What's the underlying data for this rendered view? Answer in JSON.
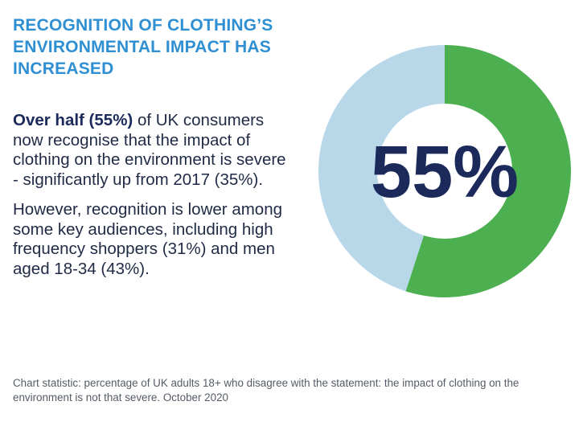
{
  "title_lines": [
    "RECOGNITION OF CLOTHING’S",
    "ENVIRONMENTAL IMPACT HAS",
    "INCREASED"
  ],
  "paragraph1": {
    "lead": "Over half (55%)",
    "rest": " of UK consumers now recognise that the impact of clothing on the environment is severe - significantly up from 2017 (35%)."
  },
  "paragraph2": "However, recognition is lower among some key audiences, including high frequency shoppers (31%) and men aged 18-34 (43%).",
  "footnote": "Chart statistic: percentage of UK adults 18+ who disagree with the statement: the impact of clothing on the environment is not that severe. October 2020",
  "center_label": "55%",
  "colors": {
    "title": "#2f8fd3",
    "highlight": "#4caf50",
    "remainder": "#b8d8ea",
    "center_text": "#1b2a5b"
  },
  "chart_data": {
    "type": "pie",
    "categories": [
      "",
      ""
    ],
    "values": [
      55,
      45
    ],
    "title": "",
    "center_label": "55%"
  }
}
